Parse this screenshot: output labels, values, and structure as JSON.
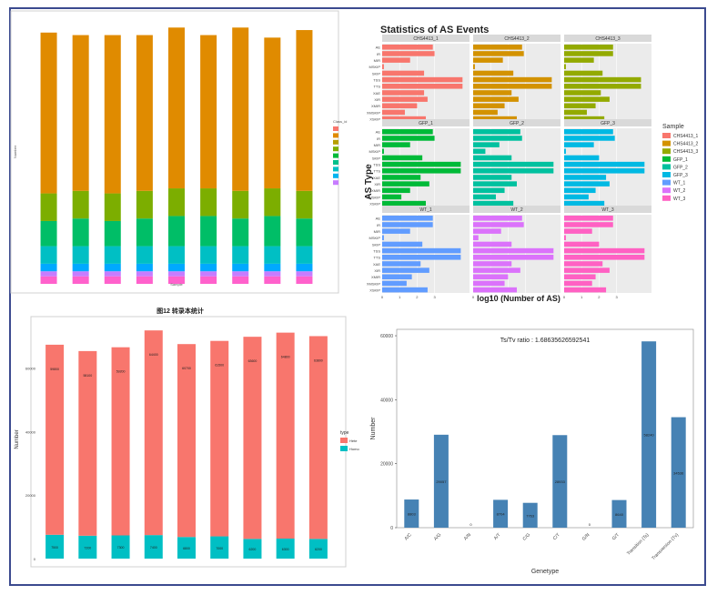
{
  "colors": {
    "frame": "#3b4a8f",
    "orange": "#e08b00",
    "olive": "#7cae00",
    "green": "#00be67",
    "teal": "#00bfc4",
    "blue": "#00a9ff",
    "purple": "#c77cff",
    "pink": "#ff61cc",
    "salmon": "#f8766d",
    "cyan": "#00bfc4",
    "steel": "#4682b4"
  },
  "chart_data": [
    {
      "id": "class-stack",
      "type": "bar",
      "stacked": true,
      "xlabel": "Sample",
      "ylabel": "Number",
      "legend_title": "Class_id",
      "legend_position": "right",
      "legend_keys": 9,
      "categories": [
        "",
        "",
        "",
        "",
        "",
        "",
        "",
        "",
        ""
      ],
      "series": [
        {
          "color": "#ff61cc",
          "values": [
            0.03,
            0.03,
            0.03,
            0.03,
            0.03,
            0.03,
            0.03,
            0.03,
            0.03
          ]
        },
        {
          "color": "#c77cff",
          "values": [
            0.02,
            0.02,
            0.02,
            0.02,
            0.02,
            0.02,
            0.02,
            0.02,
            0.02
          ]
        },
        {
          "color": "#00a9ff",
          "values": [
            0.03,
            0.03,
            0.03,
            0.03,
            0.03,
            0.03,
            0.03,
            0.03,
            0.03
          ]
        },
        {
          "color": "#00bfc4",
          "values": [
            0.07,
            0.07,
            0.07,
            0.07,
            0.07,
            0.07,
            0.07,
            0.07,
            0.07
          ]
        },
        {
          "color": "#00be67",
          "values": [
            0.1,
            0.11,
            0.1,
            0.11,
            0.12,
            0.12,
            0.11,
            0.12,
            0.11
          ]
        },
        {
          "color": "#7cae00",
          "values": [
            0.11,
            0.11,
            0.11,
            0.11,
            0.11,
            0.11,
            0.11,
            0.11,
            0.11
          ]
        },
        {
          "color": "#e08b00",
          "values": [
            0.64,
            0.62,
            0.63,
            0.62,
            0.64,
            0.61,
            0.65,
            0.6,
            0.64
          ]
        }
      ],
      "ylim": [
        0,
        1.05
      ]
    },
    {
      "id": "as-events",
      "type": "bar",
      "orientation": "horizontal",
      "title": "Statistics of AS Events",
      "xlabel": "log10 (Number of AS)",
      "ylabel": "AS Type",
      "xlim": [
        0,
        5
      ],
      "xticks": [
        0,
        1,
        2,
        3
      ],
      "legend_title": "Sample",
      "legend_position": "right",
      "categories": [
        "AE",
        "IR",
        "MIR",
        "MSKIP",
        "SKIP",
        "TSS",
        "TTS",
        "XAE",
        "XIR",
        "XMIR",
        "XMSKIP",
        "XSKIP"
      ],
      "panels": [
        {
          "label": "CHS4413_1",
          "color": "#f8766d",
          "values": [
            2.9,
            3.0,
            1.6,
            0.1,
            2.4,
            4.6,
            4.6,
            2.4,
            2.6,
            2.0,
            1.3,
            2.5
          ]
        },
        {
          "label": "CHS4413_2",
          "color": "#d39200",
          "values": [
            2.8,
            2.9,
            1.7,
            0.1,
            2.3,
            4.5,
            4.5,
            2.2,
            2.6,
            1.8,
            1.4,
            2.5
          ]
        },
        {
          "label": "CHS4413_3",
          "color": "#93aa00",
          "values": [
            2.8,
            2.8,
            1.7,
            0.1,
            2.2,
            4.4,
            4.4,
            2.1,
            2.6,
            1.8,
            1.3,
            2.3
          ]
        },
        {
          "label": "GFP_1",
          "color": "#00ba38",
          "values": [
            2.9,
            3.0,
            1.6,
            0.1,
            2.3,
            4.5,
            4.5,
            2.2,
            2.7,
            1.6,
            1.1,
            2.5
          ]
        },
        {
          "label": "GFP_2",
          "color": "#00c19f",
          "values": [
            2.7,
            2.8,
            1.5,
            0.7,
            2.2,
            4.6,
            4.6,
            2.2,
            2.5,
            1.8,
            1.3,
            2.3
          ]
        },
        {
          "label": "GFP_3",
          "color": "#00b9e3",
          "values": [
            2.8,
            2.9,
            1.7,
            0.1,
            2.0,
            4.6,
            4.6,
            2.4,
            2.6,
            1.8,
            1.4,
            2.3
          ]
        },
        {
          "label": "WT_1",
          "color": "#619cff",
          "values": [
            2.9,
            2.9,
            1.6,
            0.1,
            2.3,
            4.5,
            4.5,
            2.2,
            2.7,
            1.7,
            1.4,
            2.6
          ]
        },
        {
          "label": "WT_2",
          "color": "#db72fb",
          "values": [
            2.8,
            2.9,
            1.6,
            0.3,
            2.2,
            4.6,
            4.6,
            2.2,
            2.7,
            2.0,
            1.8,
            2.5
          ]
        },
        {
          "label": "WT_3",
          "color": "#ff61c3",
          "values": [
            2.8,
            2.8,
            1.6,
            0.1,
            2.0,
            4.6,
            4.6,
            2.2,
            2.6,
            1.8,
            1.6,
            2.4
          ]
        }
      ],
      "legend": [
        "CHS4413_1",
        "CHS4413_2",
        "CHS4413_3",
        "GFP_1",
        "GFP_2",
        "GFP_3",
        "WT_1",
        "WT_2",
        "WT_3"
      ]
    },
    {
      "id": "hete-homo",
      "type": "bar",
      "stacked": true,
      "title": "图12 转录本统计",
      "ylabel": "Number",
      "ylim": [
        0,
        75000
      ],
      "yticks": [
        0,
        20000,
        40000,
        60000
      ],
      "legend_title": "type",
      "legend_position": "right",
      "categories": [
        "",
        "",
        "",
        "",
        "",
        "",
        "",
        "",
        ""
      ],
      "series": [
        {
          "name": "Homo",
          "color": "#00bfc4",
          "values": [
            7500,
            7200,
            7300,
            7400,
            6800,
            7000,
            6200,
            6300,
            6200
          ],
          "labels": [
            "7500",
            "7200",
            "7300",
            "7400",
            "6800",
            "7000",
            "6200",
            "6300",
            "6200"
          ]
        },
        {
          "name": "Hete",
          "color": "#f8766d",
          "values": [
            59800,
            58100,
            59200,
            64400,
            60700,
            61500,
            63600,
            64800,
            63800
          ],
          "labels": [
            "59800",
            "58100",
            "59200",
            "64400",
            "60700",
            "61500",
            "63600",
            "64800",
            "63800"
          ]
        }
      ]
    },
    {
      "id": "genetype",
      "type": "bar",
      "title": "Ts/Tv ratio : 1.68635626592541",
      "xlabel": "Genetype",
      "ylabel": "Number",
      "ylim": [
        0,
        62000
      ],
      "yticks": [
        0,
        20000,
        40000,
        60000
      ],
      "categories": [
        "A/C",
        "A/G",
        "A/N",
        "A/T",
        "C/G",
        "C/T",
        "G/N",
        "G/T",
        "Transition (Ts)",
        "Transversion (Tv)"
      ],
      "values": [
        8803,
        29057,
        0,
        8704,
        7763,
        28933,
        0,
        8640,
        58240,
        34536
      ],
      "labels": [
        "8803",
        "29057",
        "0",
        "8704",
        "7763",
        "28933",
        "0",
        "8640",
        "58240",
        "34536"
      ],
      "color": "#4682b4"
    }
  ]
}
